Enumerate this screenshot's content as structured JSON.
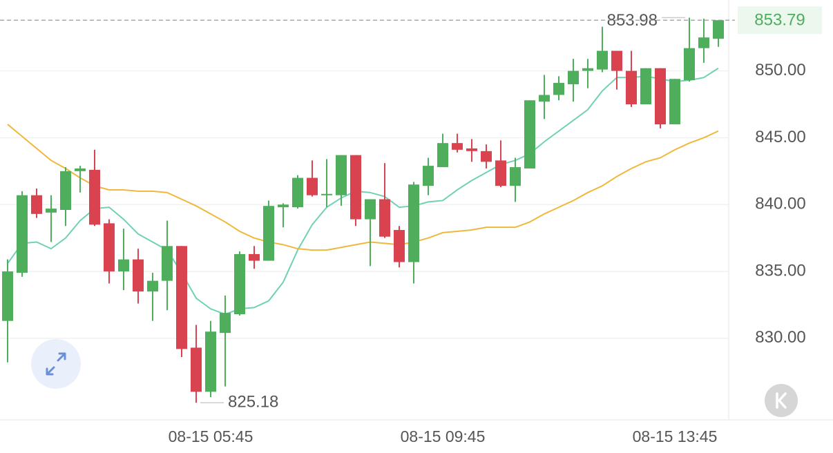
{
  "chart_data": {
    "type": "candlestick",
    "categories": [
      null,
      null,
      null,
      null,
      null,
      null,
      null,
      null,
      null,
      null,
      null,
      null,
      null,
      null,
      "08-15 05:45",
      null,
      null,
      null,
      null,
      null,
      null,
      null,
      null,
      null,
      null,
      null,
      null,
      null,
      null,
      null,
      "08-15 09:45",
      null,
      null,
      null,
      null,
      null,
      null,
      null,
      null,
      null,
      null,
      null,
      null,
      null,
      null,
      null,
      "08-15 13:45",
      null,
      null,
      null
    ],
    "open": [
      831.3,
      834.9,
      840.7,
      839.4,
      839.6,
      842.5,
      842.6,
      838.6,
      835.0,
      835.9,
      833.5,
      834.3,
      836.9,
      829.3,
      826.0,
      830.4,
      831.8,
      836.3,
      835.8,
      839.8,
      839.8,
      842.0,
      840.7,
      840.7,
      843.7,
      838.9,
      840.4,
      838.1,
      835.7,
      841.4,
      842.8,
      844.6,
      844.2,
      844.0,
      843.3,
      841.4,
      842.7,
      847.7,
      848.2,
      849.0,
      850.0,
      850.1,
      851.5,
      850.0,
      847.5,
      850.2,
      846.0,
      849.3,
      851.7,
      852.4
    ],
    "high": [
      835.9,
      841.0,
      841.2,
      840.7,
      842.8,
      842.9,
      844.1,
      838.9,
      838.2,
      836.7,
      834.9,
      838.8,
      836.9,
      831.0,
      831.3,
      833.2,
      836.5,
      836.9,
      840.3,
      840.1,
      842.2,
      843.3,
      843.4,
      843.7,
      843.7,
      840.4,
      843.1,
      838.4,
      841.7,
      843.5,
      845.3,
      845.3,
      844.9,
      844.5,
      844.8,
      843.5,
      847.8,
      849.7,
      849.6,
      850.9,
      850.9,
      853.3,
      851.5,
      851.5,
      850.2,
      850.2,
      849.4,
      853.98,
      853.9,
      853.79
    ],
    "low": [
      828.2,
      834.6,
      839.0,
      837.2,
      838.4,
      840.9,
      838.4,
      834.1,
      833.6,
      832.6,
      831.3,
      832.1,
      828.6,
      825.18,
      825.6,
      826.4,
      831.7,
      835.2,
      835.8,
      838.3,
      839.7,
      840.6,
      839.8,
      839.9,
      838.4,
      835.4,
      837.5,
      835.3,
      834.1,
      840.7,
      842.8,
      843.9,
      843.2,
      842.7,
      841.3,
      840.2,
      842.7,
      846.4,
      847.8,
      847.7,
      848.7,
      849.9,
      848.6,
      847.3,
      847.5,
      845.7,
      846.0,
      849.2,
      850.6,
      851.8
    ],
    "close": [
      835.0,
      840.7,
      839.3,
      839.7,
      842.5,
      842.7,
      838.5,
      835.0,
      835.9,
      833.5,
      834.3,
      836.9,
      829.2,
      826.0,
      830.5,
      831.9,
      836.3,
      835.8,
      839.9,
      840.0,
      842.0,
      840.7,
      840.8,
      843.7,
      838.9,
      840.4,
      837.6,
      835.7,
      841.5,
      842.9,
      844.6,
      844.1,
      844.0,
      843.2,
      841.4,
      842.8,
      847.8,
      848.2,
      849.1,
      850.0,
      850.2,
      851.5,
      850.0,
      847.5,
      850.2,
      846.0,
      849.4,
      851.7,
      852.5,
      853.79
    ],
    "up_color": "#4fae5c",
    "down_color": "#d9434f",
    "lines": [
      {
        "color": "#6fd1b4",
        "values": [
          835.6,
          837.1,
          837.2,
          836.7,
          837.5,
          838.8,
          839.7,
          839.8,
          838.9,
          837.8,
          837.2,
          836.6,
          834.9,
          833.0,
          832.2,
          831.8,
          832.2,
          832.3,
          832.8,
          834.2,
          836.6,
          838.5,
          839.8,
          840.5,
          841.0,
          840.9,
          840.6,
          839.8,
          839.9,
          840.2,
          840.3,
          841.1,
          841.8,
          842.4,
          843.0,
          843.3,
          843.8,
          844.7,
          845.5,
          846.3,
          847.1,
          848.5,
          849.5,
          849.5,
          849.6,
          849.4,
          849.2,
          849.3,
          849.5,
          850.2
        ]
      },
      {
        "color": "#f0b83a",
        "values": [
          846.0,
          845.1,
          844.2,
          843.3,
          842.7,
          842.0,
          841.4,
          841.1,
          841.1,
          841.0,
          841.0,
          840.9,
          840.4,
          839.9,
          839.3,
          838.7,
          838.0,
          837.5,
          837.2,
          837.0,
          836.7,
          836.6,
          836.6,
          836.8,
          837.0,
          837.2,
          837.1,
          837.0,
          837.2,
          837.5,
          837.9,
          838.0,
          838.1,
          838.3,
          838.3,
          838.3,
          838.7,
          839.3,
          839.8,
          840.3,
          840.9,
          841.4,
          842.1,
          842.7,
          843.2,
          843.5,
          844.1,
          844.6,
          845.0,
          845.5
        ]
      }
    ],
    "ylim": [
      823.9,
      855.3
    ],
    "yticks": [
      {
        "value": 830,
        "label": "830.00"
      },
      {
        "value": 835,
        "label": "835.00"
      },
      {
        "value": 840,
        "label": "840.00"
      },
      {
        "value": 845,
        "label": "845.00"
      },
      {
        "value": 850,
        "label": "850.00"
      }
    ],
    "grid": true
  }
}
